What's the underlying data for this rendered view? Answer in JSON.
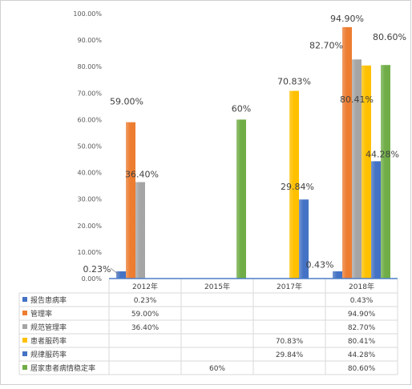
{
  "chart_data": {
    "type": "bar",
    "categories": [
      "2012年",
      "2015年",
      "2017年",
      "2018年"
    ],
    "series": [
      {
        "name": "报告患病率",
        "color": "#4472c4",
        "values": [
          0.23,
          null,
          null,
          0.43
        ],
        "table": [
          "0.23%",
          "",
          "",
          "0.43%"
        ]
      },
      {
        "name": "管理率",
        "color": "#ed7d31",
        "values": [
          59.0,
          null,
          null,
          94.9
        ],
        "table": [
          "59.00%",
          "",
          "",
          "94.90%"
        ]
      },
      {
        "name": "规范管理率",
        "color": "#a5a5a5",
        "values": [
          36.4,
          null,
          null,
          82.7
        ],
        "table": [
          "36.40%",
          "",
          "",
          "82.70%"
        ]
      },
      {
        "name": "患者服药率",
        "color": "#ffc000",
        "values": [
          null,
          null,
          70.83,
          80.41
        ],
        "table": [
          "",
          "",
          "70.83%",
          "80.41%"
        ]
      },
      {
        "name": "规律服药率",
        "color": "#4472c4",
        "values": [
          null,
          null,
          29.84,
          44.28
        ],
        "table": [
          "",
          "",
          "29.84%",
          "44.28%"
        ]
      },
      {
        "name": "居家患者病情稳定率",
        "color": "#70ad47",
        "values": [
          null,
          60,
          null,
          80.6
        ],
        "table": [
          "",
          "60%",
          "",
          "80.60%"
        ]
      }
    ],
    "data_labels": [
      {
        "series": 0,
        "category": 0,
        "text": "0.23%"
      },
      {
        "series": 0,
        "category": 3,
        "text": "0.43%"
      },
      {
        "series": 1,
        "category": 0,
        "text": "59.00%"
      },
      {
        "series": 1,
        "category": 3,
        "text": "94.90%"
      },
      {
        "series": 2,
        "category": 0,
        "text": "36.40%"
      },
      {
        "series": 2,
        "category": 3,
        "text": "82.70%"
      },
      {
        "series": 3,
        "category": 2,
        "text": "70.83%"
      },
      {
        "series": 3,
        "category": 3,
        "text": "80.41%"
      },
      {
        "series": 4,
        "category": 2,
        "text": "29.84%"
      },
      {
        "series": 4,
        "category": 3,
        "text": "44.28%"
      },
      {
        "series": 5,
        "category": 1,
        "text": "60%"
      },
      {
        "series": 5,
        "category": 3,
        "text": "80.60%"
      }
    ],
    "y_ticks": [
      "0.00%",
      "10.00%",
      "20.00%",
      "30.00%",
      "40.00%",
      "50.00%",
      "60.00%",
      "70.00%",
      "80.00%",
      "90.00%",
      "100.00%"
    ],
    "ylim": [
      0,
      100
    ],
    "grid": false,
    "legend": "data-table"
  }
}
